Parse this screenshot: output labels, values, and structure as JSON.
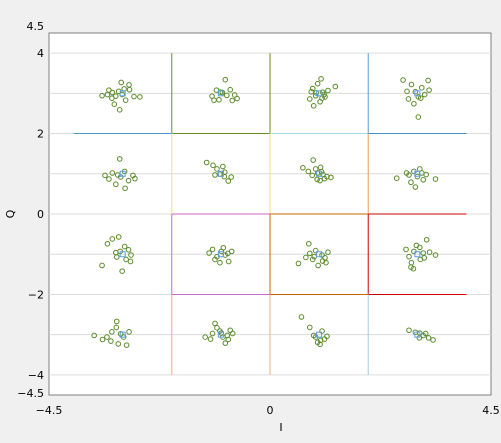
{
  "chart_data": {
    "type": "scatter",
    "title": "",
    "xlabel": "I",
    "ylabel": "Q",
    "xlim": [
      -4.5,
      4.5
    ],
    "ylim": [
      -4.5,
      4.5
    ],
    "x_ticks": [
      {
        "value": -4.5,
        "label": "−4.5"
      },
      {
        "value": 0,
        "label": "0"
      },
      {
        "value": 4.5,
        "label": "4.5"
      }
    ],
    "y_ticks": [
      {
        "value": 4.5,
        "label": "4.5"
      },
      {
        "value": 4,
        "label": "4"
      },
      {
        "value": 2,
        "label": "2"
      },
      {
        "value": 0,
        "label": "0"
      },
      {
        "value": -2,
        "label": "−2"
      },
      {
        "value": -4,
        "label": "−4"
      },
      {
        "value": -4.5,
        "label": "−4.5"
      }
    ],
    "grid": true,
    "grid_y": [
      -4,
      -3,
      -2,
      -1,
      0,
      1,
      2,
      3,
      4
    ],
    "legend": "none",
    "marker_color": "#5a8a2a",
    "reference_color": "#5aa0e0",
    "decision_lines": [
      {
        "points": [
          [
            -2,
            4
          ],
          [
            -2,
            2
          ]
        ],
        "color": "#6b8e23"
      },
      {
        "points": [
          [
            -2,
            2
          ],
          [
            0,
            2
          ]
        ],
        "color": "#6b8e23"
      },
      {
        "points": [
          [
            0,
            2
          ],
          [
            0,
            4
          ]
        ],
        "color": "#6b8e23"
      },
      {
        "points": [
          [
            -4,
            2
          ],
          [
            -2,
            2
          ]
        ],
        "color": "#4aa0c8"
      },
      {
        "points": [
          [
            0,
            2
          ],
          [
            2,
            2
          ]
        ],
        "color": "#a8d8e8"
      },
      {
        "points": [
          [
            2,
            4
          ],
          [
            2,
            2
          ]
        ],
        "color": "#5b9bd5"
      },
      {
        "points": [
          [
            2,
            2
          ],
          [
            4,
            2
          ]
        ],
        "color": "#4a90c8"
      },
      {
        "points": [
          [
            -2,
            2
          ],
          [
            -2,
            0
          ]
        ],
        "color": "#f0e080"
      },
      {
        "points": [
          [
            0,
            2
          ],
          [
            0,
            0
          ]
        ],
        "color": "#f0e080"
      },
      {
        "points": [
          [
            2,
            2
          ],
          [
            2,
            0
          ]
        ],
        "color": "#e8a060"
      },
      {
        "points": [
          [
            -2,
            0
          ],
          [
            0,
            0
          ]
        ],
        "color": "#cc66cc"
      },
      {
        "points": [
          [
            -2,
            0
          ],
          [
            -2,
            -2
          ]
        ],
        "color": "#cc66cc"
      },
      {
        "points": [
          [
            -2,
            -2
          ],
          [
            0,
            -2
          ]
        ],
        "color": "#cc66cc"
      },
      {
        "points": [
          [
            0,
            0
          ],
          [
            2,
            0
          ]
        ],
        "color": "#cc6600"
      },
      {
        "points": [
          [
            0,
            0
          ],
          [
            0,
            -2
          ]
        ],
        "color": "#cc6600"
      },
      {
        "points": [
          [
            0,
            -2
          ],
          [
            2,
            -2
          ]
        ],
        "color": "#cc6600"
      },
      {
        "points": [
          [
            2,
            0
          ],
          [
            4,
            0
          ]
        ],
        "color": "#cc0000"
      },
      {
        "points": [
          [
            2,
            0
          ],
          [
            2,
            -2
          ]
        ],
        "color": "#cc0000"
      },
      {
        "points": [
          [
            2,
            -2
          ],
          [
            4,
            -2
          ]
        ],
        "color": "#cc0000"
      },
      {
        "points": [
          [
            -2,
            -2
          ],
          [
            -2,
            -4
          ]
        ],
        "color": "#e8b080"
      },
      {
        "points": [
          [
            0,
            -2
          ],
          [
            0,
            -4
          ]
        ],
        "color": "#e8b080"
      },
      {
        "points": [
          [
            2,
            -2
          ],
          [
            2,
            -4
          ]
        ],
        "color": "#a8c8e0"
      }
    ],
    "reference_points": [
      [
        -3,
        3
      ],
      [
        -1,
        3
      ],
      [
        1,
        3
      ],
      [
        3,
        3
      ],
      [
        -3,
        1
      ],
      [
        -1,
        1
      ],
      [
        1,
        1
      ],
      [
        3,
        1
      ],
      [
        -3,
        -1
      ],
      [
        -1,
        -1
      ],
      [
        1,
        -1
      ],
      [
        3,
        -1
      ],
      [
        -3,
        -3
      ],
      [
        -1,
        -3
      ],
      [
        1,
        -3
      ],
      [
        3,
        -3
      ]
    ],
    "points": [
      [
        -3.42,
        2.94
      ],
      [
        -3.31,
        2.97
      ],
      [
        -3.22,
        2.88
      ],
      [
        -3.28,
        3.08
      ],
      [
        -3.14,
        2.93
      ],
      [
        -3.08,
        3.05
      ],
      [
        -3.01,
        2.97
      ],
      [
        -2.94,
        2.83
      ],
      [
        -2.86,
        3.09
      ],
      [
        -2.77,
        2.92
      ],
      [
        -3.03,
        3.27
      ],
      [
        -2.87,
        3.21
      ],
      [
        -3.17,
        2.73
      ],
      [
        -3.06,
        2.59
      ],
      [
        -2.65,
        2.91
      ],
      [
        -3.21,
        3.02
      ],
      [
        -2.97,
        3.11
      ],
      [
        -1.18,
        2.93
      ],
      [
        -1.09,
        3.08
      ],
      [
        -1.04,
        2.84
      ],
      [
        -0.97,
        3.02
      ],
      [
        -0.88,
        2.95
      ],
      [
        -0.81,
        3.09
      ],
      [
        -0.77,
        2.82
      ],
      [
        -0.91,
        3.34
      ],
      [
        -0.67,
        2.87
      ],
      [
        -1.14,
        2.83
      ],
      [
        -0.72,
        2.96
      ],
      [
        -1.01,
        3.03
      ],
      [
        0.81,
        2.86
      ],
      [
        0.87,
        3.12
      ],
      [
        0.93,
        2.94
      ],
      [
        0.97,
        3.24
      ],
      [
        1.02,
        2.79
      ],
      [
        1.07,
        3.03
      ],
      [
        1.04,
        3.36
      ],
      [
        0.89,
        2.69
      ],
      [
        1.12,
        2.91
      ],
      [
        1.18,
        3.07
      ],
      [
        1.33,
        3.17
      ],
      [
        0.94,
        3.01
      ],
      [
        1.06,
        2.88
      ],
      [
        0.84,
        3.04
      ],
      [
        1.1,
        2.97
      ],
      [
        2.71,
        3.33
      ],
      [
        2.82,
        2.86
      ],
      [
        2.88,
        3.22
      ],
      [
        2.96,
        3.04
      ],
      [
        3.02,
        2.91
      ],
      [
        3.09,
        3.14
      ],
      [
        2.93,
        2.74
      ],
      [
        3.15,
        2.97
      ],
      [
        3.24,
        3.08
      ],
      [
        3.02,
        2.41
      ],
      [
        3.22,
        3.32
      ],
      [
        2.79,
        3.05
      ],
      [
        3.07,
        2.88
      ],
      [
        -3.36,
        0.96
      ],
      [
        -3.28,
        0.87
      ],
      [
        -3.21,
        1.02
      ],
      [
        -3.14,
        0.74
      ],
      [
        -3.04,
        0.92
      ],
      [
        -2.96,
        1.06
      ],
      [
        -2.88,
        0.83
      ],
      [
        -2.79,
        0.96
      ],
      [
        -3.06,
        1.37
      ],
      [
        -2.95,
        0.64
      ],
      [
        -2.75,
        0.88
      ],
      [
        -3.1,
        0.97
      ],
      [
        -1.29,
        1.28
      ],
      [
        -1.16,
        1.21
      ],
      [
        -1.08,
        1.12
      ],
      [
        -1.02,
        0.99
      ],
      [
        -0.93,
        0.93
      ],
      [
        -0.85,
        0.82
      ],
      [
        -0.79,
        0.92
      ],
      [
        -0.92,
        1.04
      ],
      [
        -1.12,
        0.97
      ],
      [
        -0.96,
        1.18
      ],
      [
        0.67,
        1.15
      ],
      [
        0.78,
        1.06
      ],
      [
        0.86,
        0.96
      ],
      [
        0.93,
        1.12
      ],
      [
        0.97,
        1.02
      ],
      [
        1.02,
        0.83
      ],
      [
        1.08,
        0.98
      ],
      [
        1.16,
        0.93
      ],
      [
        1.24,
        0.91
      ],
      [
        0.88,
        1.34
      ],
      [
        1.03,
        1.16
      ],
      [
        1.11,
        0.88
      ],
      [
        0.96,
        0.86
      ],
      [
        1.05,
        1.05
      ],
      [
        2.58,
        0.89
      ],
      [
        2.78,
        1.02
      ],
      [
        2.87,
        0.79
      ],
      [
        2.93,
        1.06
      ],
      [
        3.0,
        0.93
      ],
      [
        3.05,
        1.12
      ],
      [
        3.12,
        0.85
      ],
      [
        3.18,
        0.98
      ],
      [
        3.37,
        0.87
      ],
      [
        2.96,
        0.67
      ],
      [
        3.09,
        1.02
      ],
      [
        2.83,
        0.97
      ],
      [
        -3.42,
        -1.28
      ],
      [
        -3.31,
        -0.74
      ],
      [
        -3.21,
        -0.62
      ],
      [
        -3.12,
        -1.07
      ],
      [
        -3.05,
        -0.93
      ],
      [
        -2.96,
        -0.81
      ],
      [
        -2.88,
        -0.89
      ],
      [
        -2.83,
        -1.02
      ],
      [
        -2.93,
        -1.13
      ],
      [
        -3.01,
        -1.42
      ],
      [
        -3.14,
        -0.96
      ],
      [
        -2.84,
        -1.18
      ],
      [
        -3.08,
        -0.57
      ],
      [
        -1.24,
        -0.97
      ],
      [
        -1.17,
        -0.88
      ],
      [
        -1.08,
        -1.06
      ],
      [
        -0.99,
        -0.93
      ],
      [
        -0.91,
        -1.02
      ],
      [
        -0.84,
        -1.18
      ],
      [
        -0.78,
        -0.93
      ],
      [
        -1.12,
        -1.13
      ],
      [
        -0.95,
        -0.84
      ],
      [
        -0.86,
        -0.98
      ],
      [
        -1.02,
        -1.21
      ],
      [
        0.58,
        -1.23
      ],
      [
        0.73,
        -1.08
      ],
      [
        0.81,
        -0.98
      ],
      [
        0.87,
        -1.13
      ],
      [
        0.93,
        -0.91
      ],
      [
        0.98,
        -1.28
      ],
      [
        1.06,
        -1.02
      ],
      [
        1.14,
        -1.21
      ],
      [
        1.18,
        -0.95
      ],
      [
        0.79,
        -0.74
      ],
      [
        1.07,
        -1.17
      ],
      [
        0.9,
        -1.06
      ],
      [
        1.12,
        -1.09
      ],
      [
        2.77,
        -0.88
      ],
      [
        2.83,
        -1.06
      ],
      [
        2.88,
        -1.21
      ],
      [
        2.93,
        -0.93
      ],
      [
        2.98,
        -0.78
      ],
      [
        3.06,
        -1.13
      ],
      [
        3.12,
        -0.97
      ],
      [
        3.19,
        -0.64
      ],
      [
        3.25,
        -0.95
      ],
      [
        3.37,
        -1.02
      ],
      [
        2.92,
        -1.36
      ],
      [
        3.05,
        -0.83
      ],
      [
        2.87,
        -1.32
      ],
      [
        3.14,
        -1.09
      ],
      [
        -3.58,
        -3.02
      ],
      [
        -3.41,
        -3.12
      ],
      [
        -3.32,
        -3.06
      ],
      [
        -3.22,
        -2.93
      ],
      [
        -3.13,
        -2.82
      ],
      [
        -3.09,
        -3.23
      ],
      [
        -3.04,
        -2.98
      ],
      [
        -2.98,
        -3.06
      ],
      [
        -2.92,
        -3.26
      ],
      [
        -2.87,
        -2.93
      ],
      [
        -3.12,
        -2.67
      ],
      [
        -3.24,
        -3.16
      ],
      [
        -1.32,
        -3.06
      ],
      [
        -1.17,
        -2.97
      ],
      [
        -1.08,
        -2.83
      ],
      [
        -1.02,
        -2.91
      ],
      [
        -0.96,
        -3.06
      ],
      [
        -0.91,
        -3.21
      ],
      [
        -0.87,
        -3.02
      ],
      [
        -0.81,
        -2.89
      ],
      [
        -0.76,
        -2.97
      ],
      [
        -1.12,
        -2.72
      ],
      [
        -0.99,
        -2.96
      ],
      [
        -1.21,
        -3.11
      ],
      [
        -0.85,
        -3.12
      ],
      [
        0.64,
        -2.56
      ],
      [
        0.81,
        -2.82
      ],
      [
        0.93,
        -3.06
      ],
      [
        0.97,
        -3.19
      ],
      [
        1.02,
        -3.24
      ],
      [
        1.06,
        -2.91
      ],
      [
        1.11,
        -3.11
      ],
      [
        1.16,
        -3.04
      ],
      [
        0.89,
        -3.02
      ],
      [
        1.03,
        -3.14
      ],
      [
        2.83,
        -2.89
      ],
      [
        2.96,
        -2.94
      ],
      [
        3.04,
        -3.08
      ],
      [
        3.12,
        -3.02
      ],
      [
        3.17,
        -2.97
      ],
      [
        3.23,
        -3.08
      ],
      [
        3.32,
        -3.13
      ],
      [
        3.05,
        -2.96
      ]
    ]
  }
}
